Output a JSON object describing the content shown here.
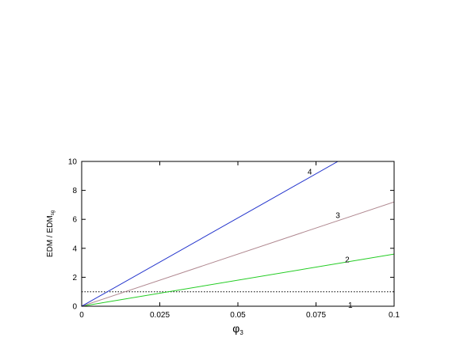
{
  "chart_data": {
    "type": "line",
    "title": "",
    "xlabel": "φ",
    "xlabel_sub": "3",
    "ylabel": "EDM / EDM",
    "ylabel_sub": "sg",
    "xlim": [
      0,
      0.1
    ],
    "ylim": [
      0,
      10
    ],
    "xticks": [
      0,
      0.025,
      0.05,
      0.075,
      0.1
    ],
    "xtick_labels": [
      "0",
      "0.025",
      "0.05",
      "0.075",
      "0.1"
    ],
    "yticks": [
      0,
      2,
      4,
      6,
      8,
      10
    ],
    "ytick_labels": [
      "0",
      "2",
      "4",
      "6",
      "8",
      "10"
    ],
    "grid": false,
    "legend": "none",
    "series": [
      {
        "name": "1",
        "color": "#d40000",
        "dash": "none",
        "points": [
          [
            0,
            0
          ],
          [
            0.1,
            0
          ]
        ]
      },
      {
        "name": "2",
        "color": "#22cc22",
        "dash": "none",
        "points": [
          [
            0,
            0
          ],
          [
            0.1,
            3.6
          ]
        ]
      },
      {
        "name": "3",
        "color": "#b08890",
        "dash": "none",
        "points": [
          [
            0,
            0
          ],
          [
            0.1,
            7.2
          ]
        ]
      },
      {
        "name": "4",
        "color": "#2233cc",
        "dash": "none",
        "points": [
          [
            0,
            0
          ],
          [
            0.082,
            10
          ]
        ]
      }
    ],
    "reference_line": {
      "y": 1,
      "color": "#000000",
      "dash": "dotted"
    },
    "series_labels": [
      {
        "text": "1",
        "x": 0.086,
        "y": 0.05
      },
      {
        "text": "2",
        "x": 0.085,
        "y": 3.2
      },
      {
        "text": "3",
        "x": 0.082,
        "y": 6.25
      },
      {
        "text": "4",
        "x": 0.073,
        "y": 9.25
      }
    ]
  }
}
